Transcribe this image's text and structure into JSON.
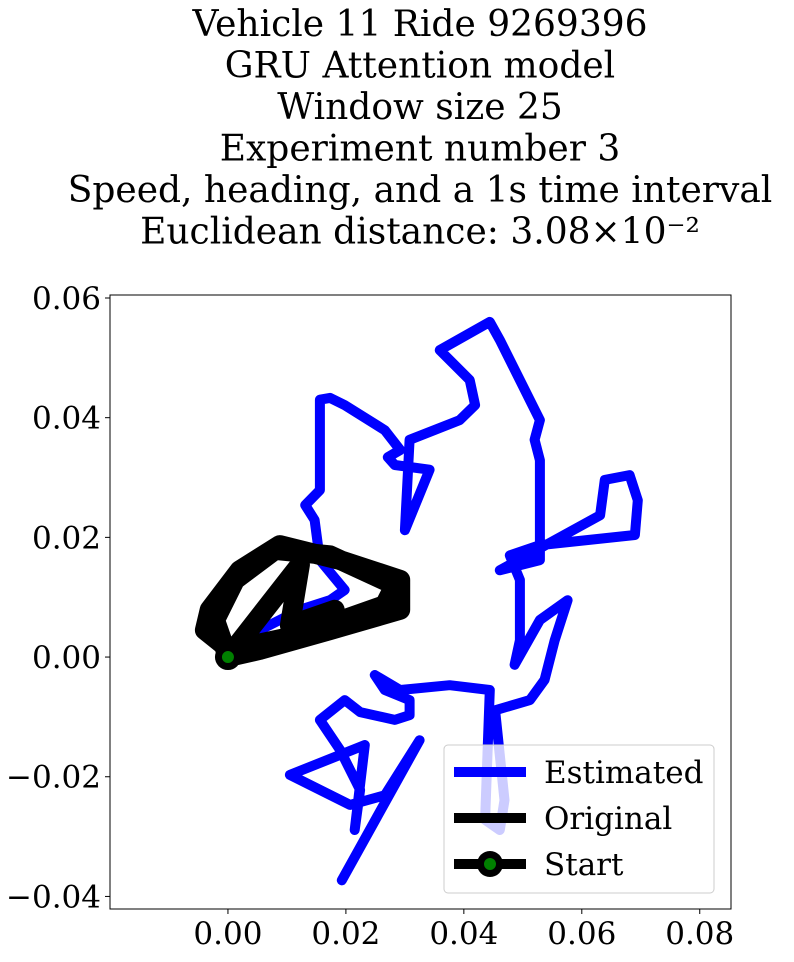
{
  "chart_data": {
    "type": "line",
    "title": [
      "Vehicle 11 Ride 9269396",
      "GRU Attention model",
      "Window size 25",
      "Experiment number 3",
      "Speed, heading, and a 1s time interval",
      "Euclidean distance: 3.08×10⁻²"
    ],
    "xlim": [
      -0.02,
      0.0853
    ],
    "ylim": [
      -0.0421,
      0.0605
    ],
    "xticks": [
      {
        "value": 0,
        "label": "0.00"
      },
      0.02,
      0.04,
      0.06,
      0.08
    ],
    "yticks": [
      {
        "value": -0.04,
        "label": "−0.04"
      },
      {
        "value": -0.02,
        "label": "−0.02"
      },
      {
        "value": 0,
        "label": "0.00"
      },
      0.02,
      0.04,
      0.06
    ],
    "legend": "lower right",
    "series": [
      {
        "name": "Estimated",
        "color": "#0000ff",
        "x": [
          0,
          0.0054,
          0.0122,
          0.0173,
          0.0198,
          0.0156,
          0.0147,
          0.0131,
          0.0156,
          0.0156,
          0.0173,
          0.0198,
          0.0266,
          0.0292,
          0.0271,
          0.0283,
          0.0342,
          0.03,
          0.0308,
          0.0393,
          0.0419,
          0.041,
          0.0359,
          0.0444,
          0.0461,
          0.0529,
          0.052,
          0.0529,
          0.0529,
          0.0461,
          0.0631,
          0.0639,
          0.0681,
          0.0695,
          0.069,
          0.0529,
          0.0478,
          0.0495,
          0.0495,
          0.0486,
          0.0529,
          0.0576,
          0.0554,
          0.0537,
          0.0512,
          0.0453,
          0.0469,
          0.0461,
          0.0436,
          0.0444,
          0.0376,
          0.0292,
          0.0249,
          0.0266,
          0.0308,
          0.0308,
          0.0283,
          0.0224,
          0.0198,
          0.0156,
          0.019,
          0.0224,
          0.0215,
          0.0232,
          0.0105,
          0.0207,
          0.0266,
          0.0325,
          0.0193
        ],
        "y": [
          0.0008,
          0.0045,
          0.0079,
          0.0095,
          0.0112,
          0.0162,
          0.0229,
          0.0254,
          0.0279,
          0.043,
          0.0433,
          0.0421,
          0.0379,
          0.0346,
          0.0334,
          0.0321,
          0.0313,
          0.0212,
          0.0363,
          0.0396,
          0.0421,
          0.0463,
          0.0513,
          0.056,
          0.053,
          0.0396,
          0.0363,
          0.0329,
          0.0162,
          0.0145,
          0.0237,
          0.0296,
          0.0304,
          0.0262,
          0.0204,
          0.0187,
          0.017,
          0.0129,
          0.0028,
          -0.0013,
          0.0062,
          0.0095,
          0.0028,
          -0.0038,
          -0.0072,
          -0.0089,
          -0.0239,
          -0.0289,
          -0.0272,
          -0.0055,
          -0.0047,
          -0.0055,
          -0.003,
          -0.0055,
          -0.0072,
          -0.0097,
          -0.0105,
          -0.0092,
          -0.0072,
          -0.0105,
          -0.0155,
          -0.0222,
          -0.0289,
          -0.0147,
          -0.0197,
          -0.0247,
          -0.0231,
          -0.0139,
          -0.0373
        ]
      },
      {
        "name": "Original",
        "color": "#000000",
        "x": [
          0,
          0.0054,
          0.0173,
          0.0292,
          0.0292,
          0.019,
          0.0088,
          0.002,
          -0.0031,
          -0.0039,
          0.0003,
          0.0122,
          0.0266,
          0.0283,
          0.0173,
          0.008,
          0.0012,
          -0.0022,
          0,
          0.0122,
          0.0105,
          0.0181
        ],
        "y": [
          0,
          0.0012,
          0.0045,
          0.0079,
          0.0129,
          0.0162,
          0.0187,
          0.0145,
          0.0079,
          0.0045,
          0.0012,
          0.0037,
          0.0087,
          0.012,
          0.017,
          0.0179,
          0.0129,
          0.0062,
          0,
          0.0154,
          0.0053,
          0.0079
        ]
      },
      {
        "name": "Start",
        "color": "#000000",
        "marker_color": "#008000",
        "x": [
          0
        ],
        "y": [
          0
        ]
      }
    ]
  }
}
